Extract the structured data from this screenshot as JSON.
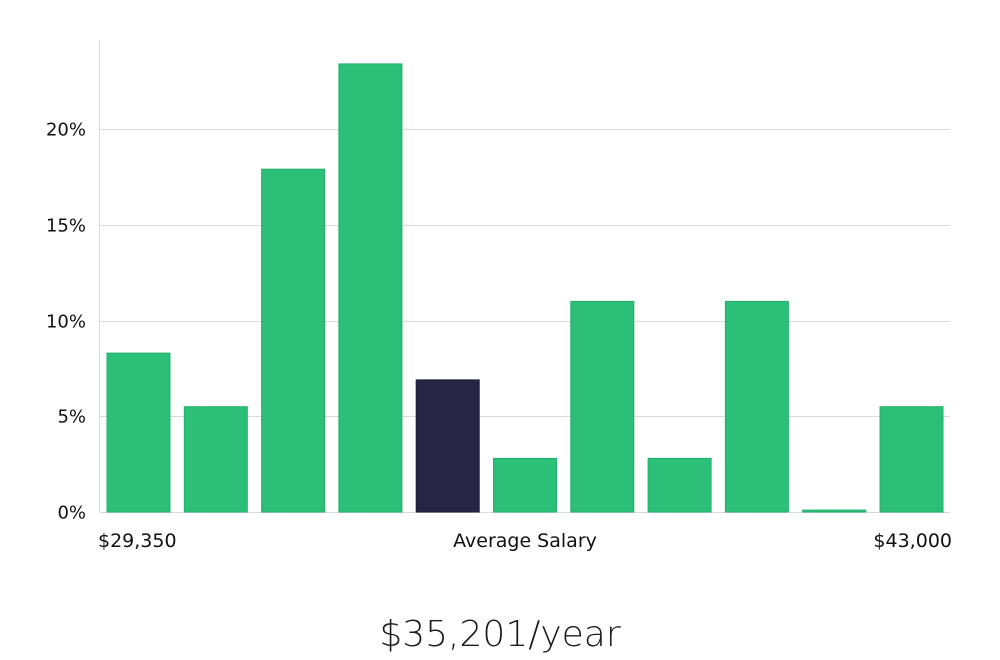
{
  "chart_data": {
    "type": "bar",
    "title": "",
    "xlabel": "Average Salary",
    "ylabel": "",
    "ylim": [
      0,
      24
    ],
    "yticks": [
      0,
      5,
      10,
      15,
      20
    ],
    "ytick_suffix": "%",
    "x_min_label": "$29,350",
    "x_max_label": "$43,000",
    "values": [
      8.3,
      5.5,
      17.9,
      23.4,
      6.9,
      2.8,
      11.0,
      2.8,
      11.0,
      0.1,
      5.5
    ],
    "highlight_index": 4,
    "bar_color": "#2bbf77",
    "highlight_color": "#272545",
    "grid": true
  },
  "salary": {
    "text": "$35,201/year"
  }
}
